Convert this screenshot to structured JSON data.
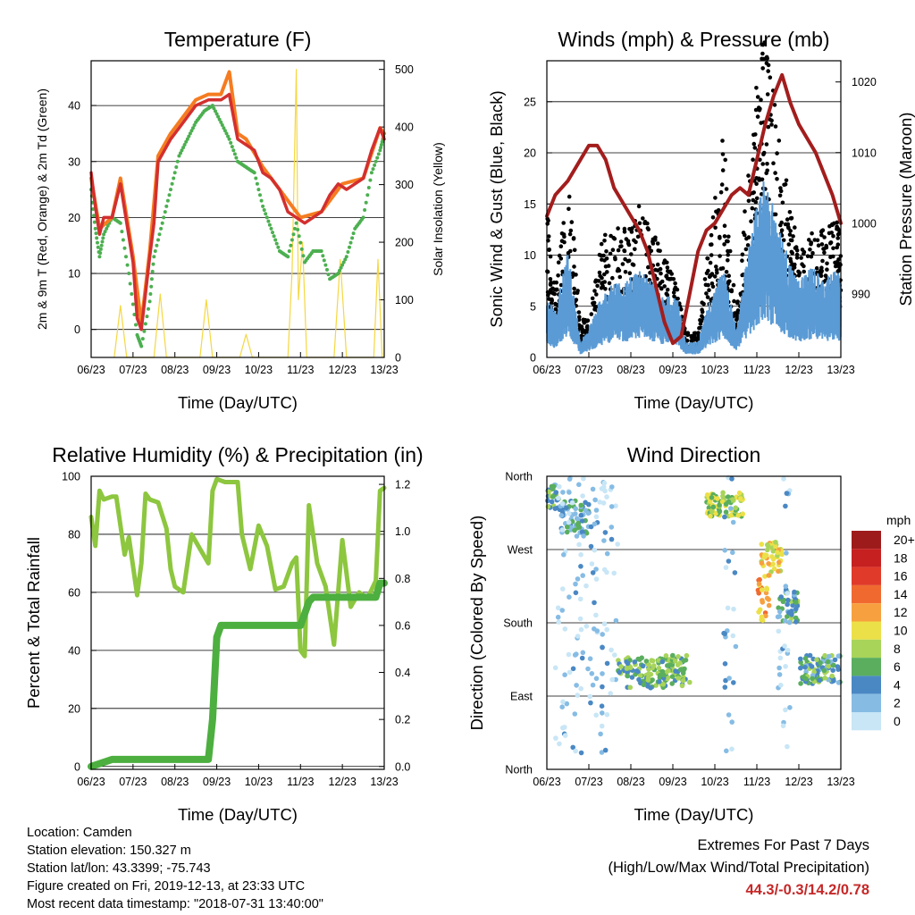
{
  "footer": {
    "location": "Location: Camden",
    "elevation": "Station elevation: 150.327 m",
    "latlon": "Station lat/lon: 43.3399; -75.743",
    "created": "Figure created on Fri, 2019-12-13, at 23:33 UTC",
    "recent": "Most recent data timestamp: \"2018-07-31 13:40:00\"",
    "extremes_title": "Extremes For Past 7 Days",
    "extremes_subtitle": "(High/Low/Max Wind/Total Precipitation)",
    "extremes_values": "44.3/-0.3/14.2/0.78"
  },
  "chart_data": [
    {
      "type": "line",
      "title": "Temperature (F)",
      "xlabel": "Time (Day/UTC)",
      "ylabel": "2m & 9m T (Red, Orange) & 2m Td (Green)",
      "y2label": "Solar Insolation (Yellow)",
      "x_ticks": [
        "06/23",
        "07/23",
        "08/23",
        "09/23",
        "10/23",
        "11/23",
        "12/23",
        "13/23"
      ],
      "ylim": [
        -5,
        48
      ],
      "y_ticks": [
        0,
        10,
        20,
        30,
        40
      ],
      "y2lim": [
        0,
        515
      ],
      "y2_ticks": [
        0,
        100,
        200,
        300,
        400,
        500
      ],
      "grid": true,
      "colors": {
        "t2m": "#d32f2f",
        "t9m": "#f57c20",
        "td": "#4caf50",
        "solar": "#f5d742"
      },
      "series": [
        {
          "key": "t2m",
          "x": [
            0,
            0.1,
            0.2,
            0.3,
            0.5,
            0.7,
            1.0,
            1.1,
            1.2,
            1.4,
            1.5,
            1.6,
            1.9,
            2.2,
            2.5,
            2.8,
            3.1,
            3.3,
            3.5,
            3.7,
            3.9,
            4.1,
            4.3,
            4.5,
            4.7,
            4.9,
            5.1,
            5.3,
            5.5,
            5.7,
            5.9,
            6.1,
            6.3,
            6.5,
            6.7,
            6.9,
            7.0
          ],
          "values": [
            28,
            22,
            17,
            20,
            20,
            26,
            12,
            2,
            0,
            13,
            19,
            30,
            34,
            37,
            40,
            41,
            41,
            42,
            34,
            33,
            32,
            28,
            27,
            25,
            21,
            20,
            19,
            20,
            21,
            24,
            26,
            25,
            26,
            27,
            32,
            36,
            34
          ]
        },
        {
          "key": "t9m",
          "x": [
            0,
            0.2,
            0.5,
            0.7,
            1.0,
            1.2,
            1.4,
            1.6,
            1.9,
            2.2,
            2.5,
            2.8,
            3.1,
            3.3,
            3.5,
            3.7,
            4.1,
            4.5,
            5.0,
            5.5,
            6.0,
            6.5,
            6.9,
            7.0
          ],
          "values": [
            27,
            18,
            20,
            27,
            13,
            1,
            14,
            31,
            35,
            38,
            41,
            42,
            42,
            46,
            35,
            34,
            29,
            25,
            20,
            21,
            26,
            27,
            36,
            35
          ]
        },
        {
          "key": "td",
          "x": [
            0,
            0.1,
            0.2,
            0.3,
            0.5,
            0.7,
            0.9,
            1.1,
            1.2,
            1.4,
            1.5,
            1.7,
            1.9,
            2.1,
            2.3,
            2.5,
            2.7,
            2.9,
            3.1,
            3.3,
            3.5,
            3.7,
            3.9,
            4.1,
            4.3,
            4.5,
            4.7,
            4.9,
            5.1,
            5.3,
            5.5,
            5.7,
            5.9,
            6.1,
            6.3,
            6.5,
            6.7,
            6.9,
            7.0
          ],
          "values": [
            25,
            18,
            13,
            17,
            20,
            19,
            10,
            -1,
            -3,
            5,
            13,
            19,
            25,
            31,
            34,
            37,
            39,
            40,
            37,
            34,
            30,
            29,
            28,
            22,
            18,
            14,
            13,
            19,
            12,
            14,
            14,
            9,
            10,
            13,
            18,
            20,
            28,
            32,
            35
          ]
        },
        {
          "key": "solar",
          "x": [
            0.55,
            0.7,
            0.85,
            1.5,
            1.65,
            1.8,
            2.6,
            2.75,
            2.9,
            3.55,
            3.7,
            3.85,
            4.7,
            4.8,
            4.9,
            4.95,
            5.05,
            5.15,
            5.8,
            5.95,
            6.1,
            6.75,
            6.85,
            6.95
          ],
          "values": [
            0,
            90,
            0,
            0,
            110,
            0,
            0,
            100,
            0,
            0,
            40,
            0,
            0,
            150,
            500,
            100,
            200,
            0,
            0,
            170,
            0,
            0,
            170,
            0
          ]
        }
      ]
    },
    {
      "type": "line",
      "title": "Winds (mph) & Pressure (mb)",
      "xlabel": "Time (Day/UTC)",
      "ylabel": "Sonic Wind & Gust (Blue, Black)",
      "y2label": "Station Pressure (Maroon)",
      "x_ticks": [
        "06/23",
        "07/23",
        "08/23",
        "09/23",
        "10/23",
        "11/23",
        "12/23",
        "13/23"
      ],
      "ylim": [
        0,
        29
      ],
      "y_ticks": [
        0,
        5,
        10,
        15,
        20,
        25
      ],
      "y2lim": [
        981,
        1023
      ],
      "y2_ticks": [
        990,
        1000,
        1010,
        1020
      ],
      "grid": true,
      "colors": {
        "gust": "#000000",
        "wind": "#5b9bd5",
        "pressure": "#a31d1d"
      },
      "series": [
        {
          "key": "wind",
          "x": [
            0,
            0.2,
            0.5,
            0.8,
            1.0,
            1.3,
            1.6,
            1.9,
            2.2,
            2.5,
            2.8,
            3.1,
            3.3,
            3.6,
            3.9,
            4.2,
            4.5,
            4.8,
            5.0,
            5.2,
            5.5,
            5.8,
            6.0,
            6.3,
            6.6,
            6.9,
            7.0
          ],
          "values": [
            4,
            3,
            7,
            1,
            2,
            4,
            5,
            5,
            6,
            5,
            4,
            4,
            1,
            1,
            4,
            6,
            2,
            7,
            10,
            12,
            9,
            6,
            5,
            6,
            5,
            6,
            5
          ]
        },
        {
          "key": "gust",
          "x": [
            0,
            0.2,
            0.5,
            0.8,
            1.0,
            1.3,
            1.6,
            1.9,
            2.2,
            2.5,
            2.8,
            3.1,
            3.3,
            3.6,
            3.9,
            4.2,
            4.5,
            4.8,
            5.0,
            5.2,
            5.5,
            5.8,
            6.0,
            6.3,
            6.6,
            6.9,
            7.0
          ],
          "values": [
            12,
            5,
            15,
            3,
            3,
            9,
            11,
            10,
            12,
            10,
            8,
            6,
            2,
            2,
            10,
            18,
            3,
            15,
            22,
            26,
            18,
            12,
            9,
            10,
            10,
            11,
            9
          ]
        },
        {
          "key": "pressure",
          "x": [
            0,
            0.2,
            0.5,
            0.8,
            1.0,
            1.2,
            1.4,
            1.6,
            1.8,
            2.0,
            2.2,
            2.4,
            2.6,
            2.8,
            3.0,
            3.2,
            3.4,
            3.6,
            3.8,
            4.0,
            4.2,
            4.4,
            4.6,
            4.8,
            5.0,
            5.2,
            5.4,
            5.6,
            5.8,
            6.0,
            6.2,
            6.4,
            6.6,
            6.8,
            7.0
          ],
          "values": [
            1001,
            1004,
            1006,
            1009,
            1011,
            1011,
            1009,
            1005,
            1003,
            1001,
            999,
            996,
            991,
            986,
            983,
            984,
            990,
            996,
            999,
            1000,
            1002,
            1004,
            1005,
            1004,
            1009,
            1014,
            1018,
            1021,
            1017,
            1014,
            1012,
            1010,
            1007,
            1004,
            1000
          ]
        }
      ]
    },
    {
      "type": "line",
      "title": "Relative Humidity (%) & Precipitation (in)",
      "xlabel": "Time (Day/UTC)",
      "ylabel": "Percent & Total Rainfall",
      "x_ticks": [
        "06/23",
        "07/23",
        "08/23",
        "09/23",
        "10/23",
        "11/23",
        "12/23",
        "13/23"
      ],
      "ylim": [
        -1,
        100
      ],
      "y_ticks": [
        0,
        20,
        40,
        60,
        80,
        100
      ],
      "y2lim": [
        -0.0123,
        1.2345
      ],
      "y2_ticks": [
        "0.0",
        "0.2",
        "0.4",
        "0.6",
        "0.8",
        "1.0",
        "1.2"
      ],
      "grid": true,
      "colors": {
        "rh": "#8dc63f",
        "precip": "#4caf3f"
      },
      "series": [
        {
          "key": "rh",
          "x": [
            0,
            0.1,
            0.2,
            0.3,
            0.5,
            0.6,
            0.8,
            0.9,
            1.0,
            1.1,
            1.2,
            1.3,
            1.4,
            1.6,
            1.8,
            1.9,
            2.0,
            2.2,
            2.4,
            2.6,
            2.8,
            2.9,
            3.0,
            3.2,
            3.4,
            3.5,
            3.6,
            3.8,
            4.0,
            4.2,
            4.4,
            4.6,
            4.8,
            4.9,
            5.0,
            5.1,
            5.2,
            5.4,
            5.6,
            5.8,
            6.0,
            6.2,
            6.4,
            6.6,
            6.8,
            6.9,
            7.0
          ],
          "values": [
            86,
            76,
            95,
            92,
            93,
            93,
            73,
            79,
            69,
            59,
            70,
            94,
            92,
            91,
            82,
            68,
            62,
            60,
            80,
            75,
            70,
            95,
            99,
            98,
            98,
            98,
            80,
            68,
            83,
            76,
            61,
            62,
            70,
            72,
            40,
            38,
            90,
            70,
            62,
            42,
            78,
            55,
            60,
            58,
            64,
            95,
            96
          ]
        },
        {
          "key": "precip",
          "x": [
            0,
            0.5,
            1.0,
            1.5,
            2.0,
            2.5,
            2.8,
            2.9,
            3.0,
            3.1,
            3.3,
            3.5,
            4.0,
            4.5,
            5.0,
            5.1,
            5.2,
            5.3,
            5.5,
            6.0,
            6.5,
            6.8,
            6.9,
            7.0
          ],
          "values": [
            0,
            0.03,
            0.03,
            0.03,
            0.03,
            0.03,
            0.03,
            0.2,
            0.55,
            0.6,
            0.6,
            0.6,
            0.6,
            0.6,
            0.6,
            0.65,
            0.7,
            0.72,
            0.72,
            0.72,
            0.72,
            0.72,
            0.78,
            0.78
          ]
        }
      ]
    },
    {
      "type": "scatter",
      "title": "Wind Direction",
      "xlabel": "Time (Day/UTC)",
      "ylabel": "Direction (Colored By Speed)",
      "x_ticks": [
        "06/23",
        "07/23",
        "08/23",
        "09/23",
        "10/23",
        "11/23",
        "12/23",
        "13/23"
      ],
      "y_ticks": [
        "North",
        "East",
        "South",
        "West",
        "North"
      ],
      "ylim": [
        0,
        360
      ],
      "grid": true,
      "legend": {
        "title": "mph",
        "placement": "right",
        "labels": [
          "20+",
          "18",
          "16",
          "14",
          "12",
          "10",
          "8",
          "6",
          "4",
          "2",
          "0"
        ],
        "colors": [
          "#9e1b1b",
          "#c62020",
          "#e03a2a",
          "#f06a30",
          "#f7a040",
          "#ece048",
          "#a8d45a",
          "#5aae5e",
          "#4a88c4",
          "#86bce4",
          "#c8e6f6"
        ]
      },
      "clusters": [
        {
          "x0": 0,
          "x1": 0.3,
          "dir0": 320,
          "dir1": 350,
          "speed": 5
        },
        {
          "x0": 0.3,
          "x1": 1.0,
          "dir0": 290,
          "dir1": 330,
          "speed": 4
        },
        {
          "x0": 0.2,
          "x1": 1.7,
          "dir0": 20,
          "dir1": 360,
          "speed": 1
        },
        {
          "x0": 1.7,
          "x1": 3.4,
          "dir0": 100,
          "dir1": 140,
          "speed": 6
        },
        {
          "x0": 3.8,
          "x1": 4.7,
          "dir0": 310,
          "dir1": 340,
          "speed": 8
        },
        {
          "x0": 4.2,
          "x1": 4.5,
          "dir0": 20,
          "dir1": 360,
          "speed": 2
        },
        {
          "x0": 5.1,
          "x1": 5.6,
          "dir0": 240,
          "dir1": 280,
          "speed": 10
        },
        {
          "x0": 5.0,
          "x1": 5.3,
          "dir0": 180,
          "dir1": 240,
          "speed": 12
        },
        {
          "x0": 5.5,
          "x1": 6.0,
          "dir0": 180,
          "dir1": 220,
          "speed": 5
        },
        {
          "x0": 6.0,
          "x1": 7.0,
          "dir0": 105,
          "dir1": 140,
          "speed": 5
        },
        {
          "x0": 5.5,
          "x1": 5.8,
          "dir0": 20,
          "dir1": 360,
          "speed": 1
        }
      ]
    }
  ]
}
